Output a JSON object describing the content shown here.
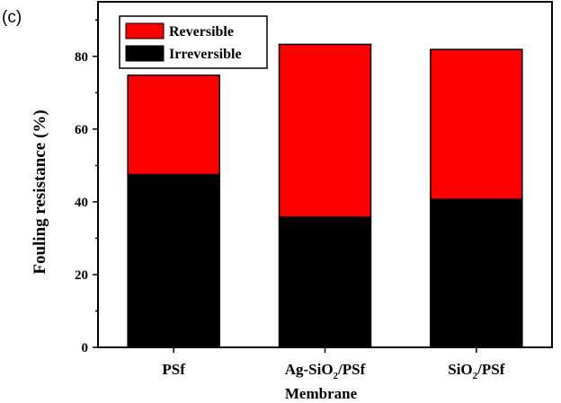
{
  "panel_label": "(c)",
  "chart_data": {
    "type": "bar",
    "stacked": true,
    "categories": [
      "PSf",
      "Ag-SiO2/PSf",
      "SiO2/PSf"
    ],
    "category_labels": [
      {
        "pre": "PSf",
        "sub": "",
        "post": ""
      },
      {
        "pre": "Ag-SiO",
        "sub": "2",
        "post": "/PSf"
      },
      {
        "pre": "SiO",
        "sub": "2",
        "post": "/PSf"
      }
    ],
    "series": [
      {
        "name": "Irreversible",
        "values": [
          47.5,
          35.8,
          40.7
        ],
        "color": "#000000"
      },
      {
        "name": "Reversible",
        "values": [
          27.3,
          47.5,
          41.2
        ],
        "color": "#ff0000"
      }
    ],
    "totals": [
      74.8,
      83.3,
      81.9
    ],
    "title": "",
    "xlabel": "Membrane",
    "ylabel": "Fouling resistance (%)",
    "ylim": [
      0,
      95
    ],
    "yticks": [
      0,
      20,
      40,
      60,
      80
    ],
    "grid": false,
    "legend_position": "top-left",
    "legend": [
      {
        "name": "Reversible",
        "color": "#ff0000"
      },
      {
        "name": "Irreversible",
        "color": "#000000"
      }
    ]
  }
}
